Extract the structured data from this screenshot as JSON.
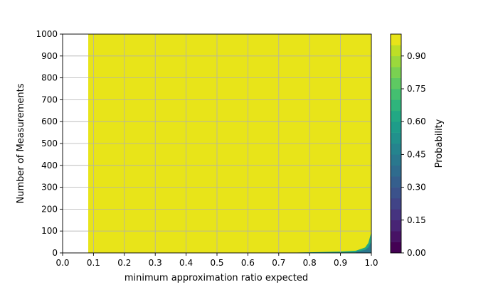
{
  "chart_data": {
    "type": "heatmap",
    "title": "",
    "xlabel": "minimum approximation ratio expected",
    "ylabel": "Number of Measurements",
    "xlim": [
      0.0,
      1.0
    ],
    "ylim": [
      0,
      1000
    ],
    "x_ticks": [
      "0.0",
      "0.1",
      "0.2",
      "0.3",
      "0.4",
      "0.5",
      "0.6",
      "0.7",
      "0.8",
      "0.9",
      "1.0"
    ],
    "y_ticks": [
      "0",
      "100",
      "200",
      "300",
      "400",
      "500",
      "600",
      "700",
      "800",
      "900",
      "1000"
    ],
    "grid": true,
    "filled_region": {
      "x_start": 0.083,
      "x_end": 1.0,
      "y_start": 0,
      "y_end": 1000,
      "dominant_probability": 1.0
    },
    "low_probability_boundary": [
      {
        "x": 0.7,
        "y": 0
      },
      {
        "x": 0.8,
        "y": 3
      },
      {
        "x": 0.9,
        "y": 6
      },
      {
        "x": 0.95,
        "y": 10
      },
      {
        "x": 0.98,
        "y": 25
      },
      {
        "x": 0.99,
        "y": 45
      },
      {
        "x": 1.0,
        "y": 95
      }
    ],
    "colorbar": {
      "label": "Probability",
      "range": [
        0.0,
        1.0
      ],
      "ticks": [
        "0.00",
        "0.15",
        "0.30",
        "0.45",
        "0.60",
        "0.75",
        "0.90"
      ],
      "levels": [
        {
          "min": 0.0,
          "max": 0.05,
          "color": "#440154"
        },
        {
          "min": 0.05,
          "max": 0.1,
          "color": "#471365"
        },
        {
          "min": 0.1,
          "max": 0.15,
          "color": "#482475"
        },
        {
          "min": 0.15,
          "max": 0.2,
          "color": "#463480"
        },
        {
          "min": 0.2,
          "max": 0.25,
          "color": "#414487"
        },
        {
          "min": 0.25,
          "max": 0.3,
          "color": "#3b528b"
        },
        {
          "min": 0.3,
          "max": 0.35,
          "color": "#355f8d"
        },
        {
          "min": 0.35,
          "max": 0.4,
          "color": "#2f6c8e"
        },
        {
          "min": 0.4,
          "max": 0.45,
          "color": "#2a788e"
        },
        {
          "min": 0.45,
          "max": 0.5,
          "color": "#25848e"
        },
        {
          "min": 0.5,
          "max": 0.55,
          "color": "#21918c"
        },
        {
          "min": 0.55,
          "max": 0.6,
          "color": "#1e9c89"
        },
        {
          "min": 0.6,
          "max": 0.65,
          "color": "#22a884"
        },
        {
          "min": 0.65,
          "max": 0.7,
          "color": "#2fb47c"
        },
        {
          "min": 0.7,
          "max": 0.75,
          "color": "#44bf70"
        },
        {
          "min": 0.75,
          "max": 0.8,
          "color": "#5ec962"
        },
        {
          "min": 0.8,
          "max": 0.85,
          "color": "#7ad151"
        },
        {
          "min": 0.85,
          "max": 0.9,
          "color": "#9bd93c"
        },
        {
          "min": 0.9,
          "max": 0.95,
          "color": "#bddf26"
        },
        {
          "min": 0.95,
          "max": 1.0,
          "color": "#e8e419"
        }
      ]
    }
  }
}
